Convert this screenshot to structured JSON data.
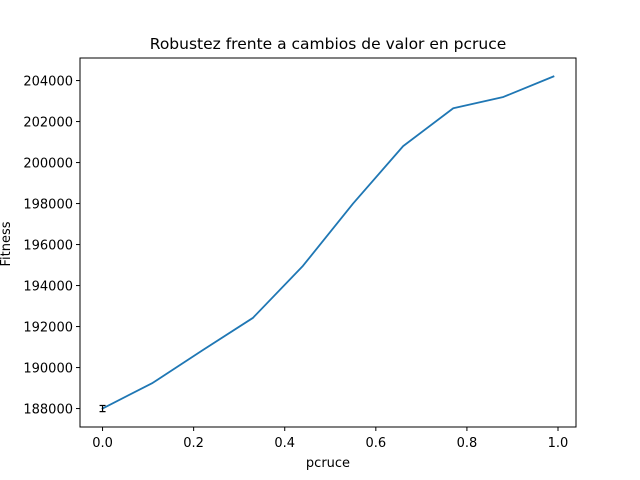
{
  "chart_data": {
    "type": "line",
    "title": "Robustez frente a cambios de valor en pcruce",
    "xlabel": "pcruce",
    "ylabel": "Fitness",
    "xlim": [
      -0.0495,
      1.0395
    ],
    "ylim": [
      187100,
      205100
    ],
    "grid": false,
    "x_ticks": [
      0.0,
      0.2,
      0.4,
      0.6,
      0.8,
      1.0
    ],
    "x_tick_labels": [
      "0.0",
      "0.2",
      "0.4",
      "0.6",
      "0.8",
      "1.0"
    ],
    "y_ticks": [
      188000,
      190000,
      192000,
      194000,
      196000,
      198000,
      200000,
      202000,
      204000
    ],
    "y_tick_labels": [
      "188000",
      "190000",
      "192000",
      "194000",
      "196000",
      "198000",
      "200000",
      "202000",
      "204000"
    ],
    "series": [
      {
        "color": "#1f77b4",
        "x": [
          0.0,
          0.11,
          0.22,
          0.33,
          0.44,
          0.55,
          0.66,
          0.77,
          0.88,
          0.99
        ],
        "y": [
          188000,
          189250,
          190850,
          192420,
          194960,
          198000,
          200800,
          202650,
          203200,
          204200
        ],
        "error": [
          150,
          0,
          0,
          0,
          0,
          0,
          0,
          0,
          0,
          0
        ]
      }
    ],
    "error_bar_color": "#000000"
  }
}
